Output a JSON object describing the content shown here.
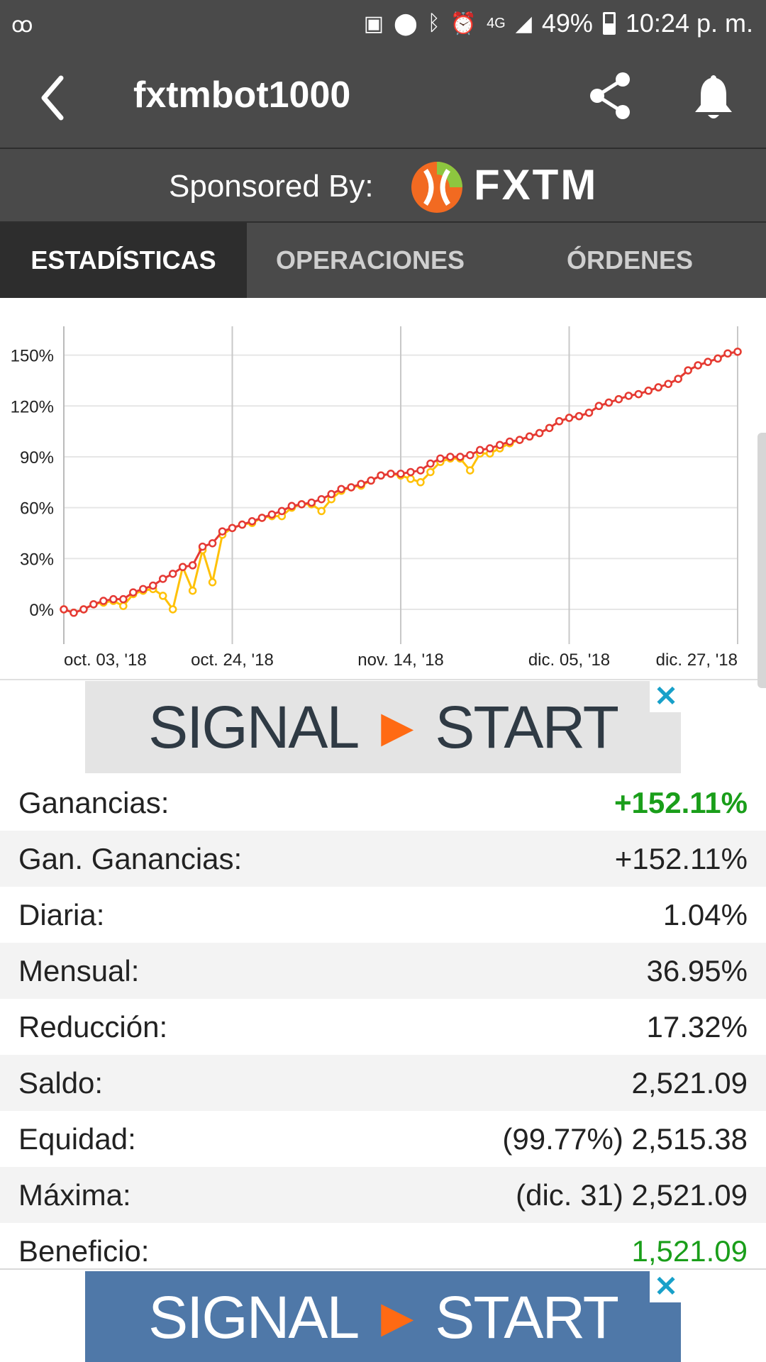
{
  "status_bar": {
    "network": "4G",
    "battery": "49%",
    "time": "10:24 p. m."
  },
  "app_bar": {
    "title": "fxtmbot1000"
  },
  "sponsor": {
    "label": "Sponsored By:",
    "brand": "FXTM",
    "colors": {
      "logo_orange": "#f26a21",
      "logo_green": "#8dc63f"
    }
  },
  "tabs": [
    {
      "label": "ESTADÍSTICAS",
      "active": true
    },
    {
      "label": "OPERACIONES",
      "active": false
    },
    {
      "label": "ÓRDENES",
      "active": false
    }
  ],
  "chart_data": {
    "type": "line",
    "title": "",
    "xlabel": "",
    "ylabel": "",
    "x_tick_labels": [
      "oct. 03, '18",
      "oct. 24, '18",
      "nov. 14, '18",
      "dic. 05, '18",
      "dic. 27, '18"
    ],
    "y_tick_labels": [
      "150%",
      "120%",
      "90%",
      "60%",
      "30%",
      "0%"
    ],
    "y_ticks": [
      150,
      120,
      90,
      60,
      30,
      0
    ],
    "ylim": [
      -18,
      167
    ],
    "grid": true,
    "legend": "none",
    "colors": {
      "gain": "#e53935",
      "equity": "#ffc107"
    },
    "series": [
      {
        "values": [
          0,
          -2,
          0,
          3,
          5,
          6,
          6,
          10,
          12,
          14,
          18,
          21,
          25,
          26,
          37,
          39,
          46,
          48,
          50,
          52,
          54,
          56,
          58,
          61,
          62,
          63,
          65,
          68,
          71,
          72,
          74,
          76,
          79,
          80,
          80,
          81,
          82,
          86,
          89,
          90,
          90,
          91,
          94,
          95,
          97,
          99,
          100,
          102,
          104,
          107,
          111,
          113,
          114,
          116,
          120,
          122,
          124,
          126,
          127,
          129,
          131,
          133,
          136,
          141,
          144,
          146,
          148,
          151,
          152
        ]
      },
      {
        "values": [
          0,
          -2,
          0,
          3,
          4,
          5,
          2,
          9,
          11,
          12,
          8,
          0,
          25,
          11,
          35,
          16,
          44,
          48,
          50,
          51,
          54,
          55,
          55,
          60,
          62,
          62,
          58,
          65,
          70,
          72,
          73,
          76,
          79,
          80,
          79,
          77,
          75,
          81,
          87,
          89,
          89,
          82,
          92,
          92,
          95,
          98,
          100,
          102,
          104,
          107,
          111,
          113,
          114,
          116,
          120,
          122,
          124,
          126,
          127,
          129,
          131,
          133,
          136,
          141,
          144,
          146,
          148,
          151,
          152
        ]
      }
    ]
  },
  "ads": {
    "top": {
      "left_text": "SIGNAL",
      "right_text": "START",
      "close": "✕"
    },
    "bottom": {
      "left_text": "SIGNAL",
      "right_text": "START",
      "close": "✕"
    }
  },
  "stats": [
    {
      "label": "Ganancias:",
      "value": "+152.11%",
      "value_color": "green",
      "bold": true
    },
    {
      "label": "Gan. Ganancias:",
      "value": "+152.11%"
    },
    {
      "label": "Diaria:",
      "value": "1.04%"
    },
    {
      "label": "Mensual:",
      "value": "36.95%"
    },
    {
      "label": "Reducción:",
      "value": "17.32%"
    },
    {
      "label": "Saldo:",
      "value": "2,521.09"
    },
    {
      "label": "Equidad:",
      "value": "(99.77%) 2,515.38"
    },
    {
      "label": "Máxima:",
      "value": "(dic. 31) 2,521.09"
    },
    {
      "label": "Beneficio:",
      "value": "1,521.09",
      "value_color": "green"
    }
  ]
}
